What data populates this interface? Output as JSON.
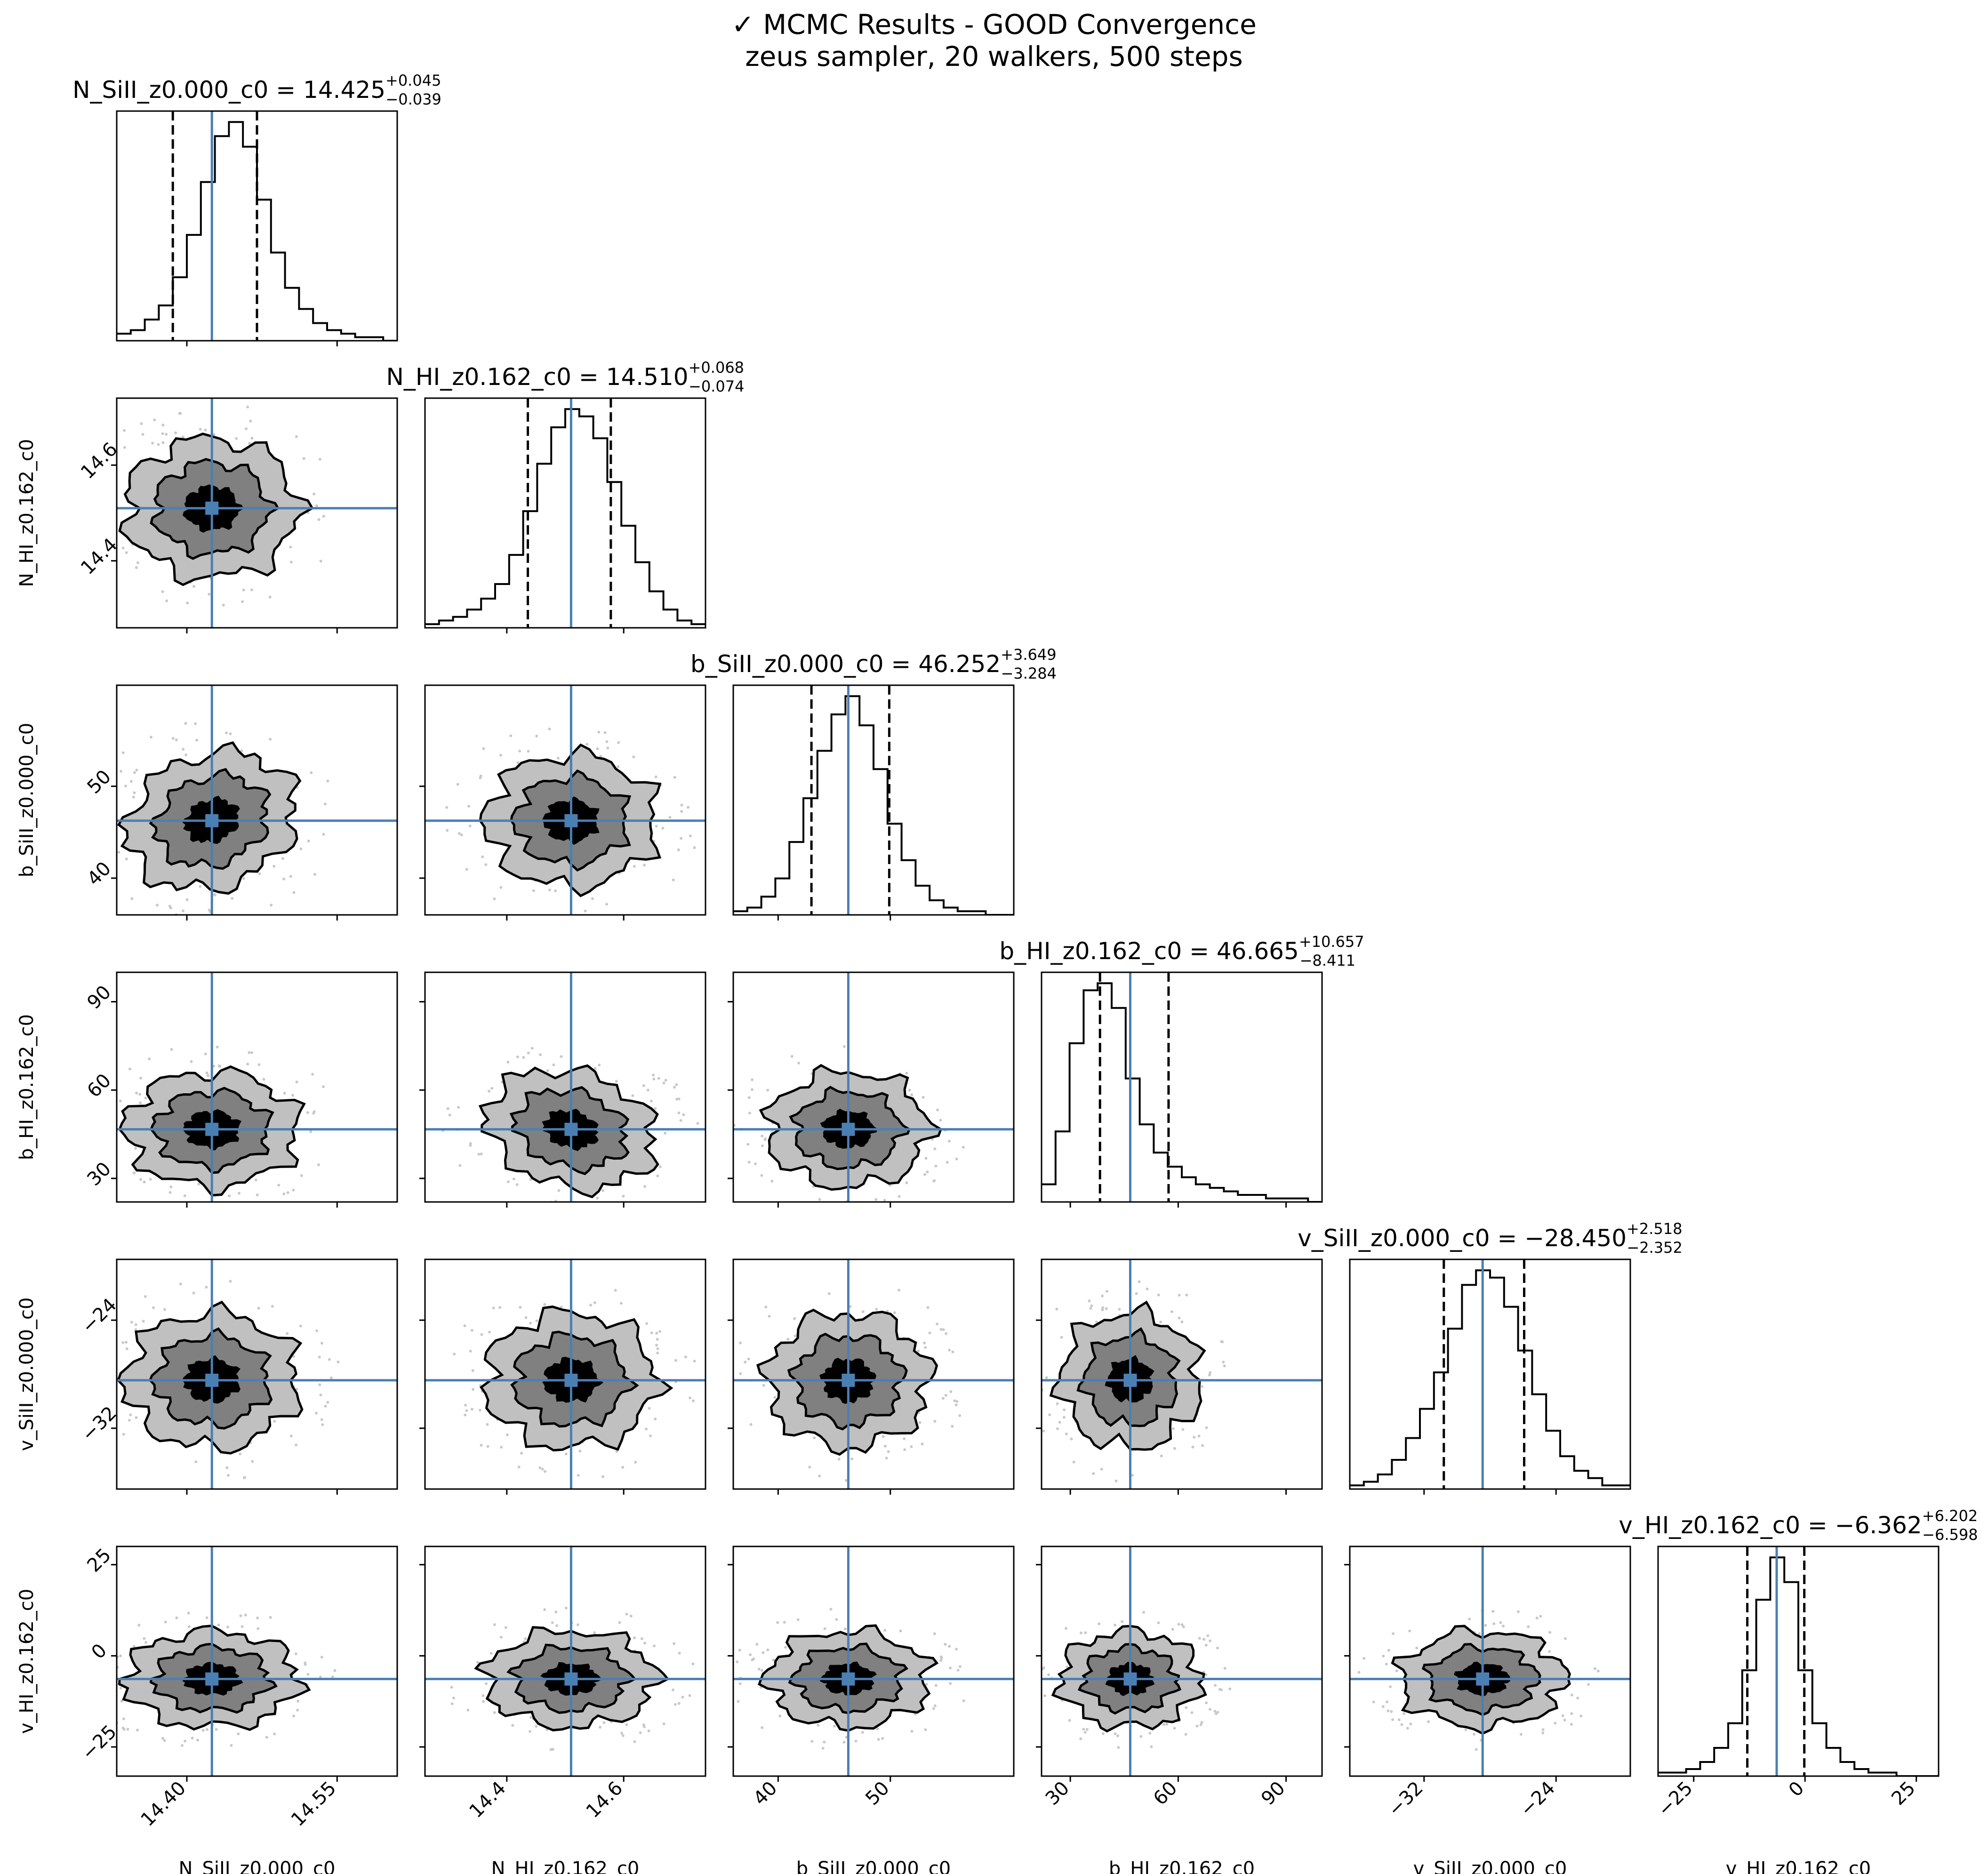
{
  "figure": {
    "title_line1": "✓ MCMC Results - GOOD Convergence",
    "title_line2": "zeus sampler, 20 walkers, 500 steps"
  },
  "colors": {
    "truth_line": "#4a7fb3",
    "contour_1": "#000000",
    "contour_2": "#808080",
    "contour_3": "#c0c0c0",
    "scatter": "#c8c8c8",
    "axis": "#000000"
  },
  "chart_data": {
    "type": "corner",
    "title": "✓ MCMC Results - GOOD Convergence",
    "subtitle": "zeus sampler, 20 walkers, 500 steps",
    "parameters": [
      {
        "name": "N_SiII_z0.000_c0",
        "median": 14.425,
        "err_plus": 0.045,
        "err_minus": 0.039,
        "title_main": "N_SiII_z0.000_c0 = 14.425",
        "title_plus": "+0.045",
        "title_minus": "−0.039",
        "range": [
          14.33,
          14.61
        ],
        "sigma": 0.042,
        "ticks": [
          14.4,
          14.55
        ],
        "tick_labels": [
          "14.40",
          "14.55"
        ]
      },
      {
        "name": "N_HI_z0.162_c0",
        "median": 14.51,
        "err_plus": 0.068,
        "err_minus": 0.074,
        "title_main": "N_HI_z0.162_c0 = 14.510",
        "title_plus": "+0.068",
        "title_minus": "−0.074",
        "range": [
          14.26,
          14.74
        ],
        "sigma": 0.071,
        "ticks": [
          14.4,
          14.6
        ],
        "tick_labels": [
          "14.4",
          "14.6"
        ]
      },
      {
        "name": "b_SiII_z0.000_c0",
        "median": 46.252,
        "err_plus": 3.649,
        "err_minus": 3.284,
        "title_main": "b_SiII_z0.000_c0 = 46.252",
        "title_plus": "+3.649",
        "title_minus": "−3.284",
        "range": [
          36.0,
          61.0
        ],
        "sigma": 3.5,
        "ticks": [
          40,
          50
        ],
        "tick_labels": [
          "40",
          "50"
        ]
      },
      {
        "name": "b_HI_z0.162_c0",
        "median": 46.665,
        "err_plus": 10.657,
        "err_minus": 8.411,
        "title_main": "b_HI_z0.162_c0 = 46.665",
        "title_plus": "+10.657",
        "title_minus": "−8.411",
        "range": [
          22.0,
          100.0
        ],
        "sigma": 9.5,
        "ticks": [
          30,
          60,
          90
        ],
        "tick_labels": [
          "30",
          "60",
          "90"
        ]
      },
      {
        "name": "v_SiII_z0.000_c0",
        "median": -28.45,
        "err_plus": 2.518,
        "err_minus": 2.352,
        "title_main": "v_SiII_z0.000_c0 = −28.450",
        "title_plus": "+2.518",
        "title_minus": "−2.352",
        "range": [
          -36.5,
          -19.5
        ],
        "sigma": 2.43,
        "ticks": [
          -32,
          -24
        ],
        "tick_labels": [
          "−32",
          "−24"
        ]
      },
      {
        "name": "v_HI_z0.162_c0",
        "median": -6.362,
        "err_plus": 6.202,
        "err_minus": 6.598,
        "title_main": "v_HI_z0.162_c0 = −6.362",
        "title_plus": "+6.202",
        "title_minus": "−6.598",
        "range": [
          -33.0,
          30.0
        ],
        "sigma": 6.4,
        "ticks": [
          -25,
          0,
          25
        ],
        "tick_labels": [
          "−25",
          "0",
          "25"
        ]
      }
    ],
    "histograms": [
      [
        2,
        3,
        6,
        10,
        18,
        30,
        45,
        58,
        62,
        55,
        40,
        25,
        15,
        9,
        5,
        3,
        2,
        1,
        1,
        0
      ],
      [
        1,
        2,
        3,
        5,
        8,
        12,
        20,
        32,
        45,
        55,
        60,
        58,
        52,
        40,
        28,
        18,
        10,
        5,
        2,
        1
      ],
      [
        1,
        2,
        5,
        10,
        20,
        32,
        45,
        55,
        60,
        52,
        40,
        25,
        15,
        8,
        4,
        2,
        1,
        1,
        0,
        0
      ],
      [
        5,
        20,
        45,
        60,
        62,
        55,
        35,
        22,
        14,
        10,
        7,
        5,
        4,
        3,
        2,
        2,
        1,
        1,
        1,
        0
      ],
      [
        1,
        2,
        4,
        8,
        14,
        22,
        32,
        44,
        56,
        60,
        58,
        50,
        38,
        26,
        16,
        9,
        5,
        3,
        1,
        1
      ],
      [
        1,
        1,
        2,
        4,
        8,
        15,
        30,
        50,
        62,
        55,
        30,
        15,
        8,
        4,
        2,
        1,
        1,
        0,
        0,
        0
      ]
    ],
    "contour_levels": [
      "inner",
      "middle",
      "outer"
    ],
    "grid": false,
    "legend": "none"
  }
}
